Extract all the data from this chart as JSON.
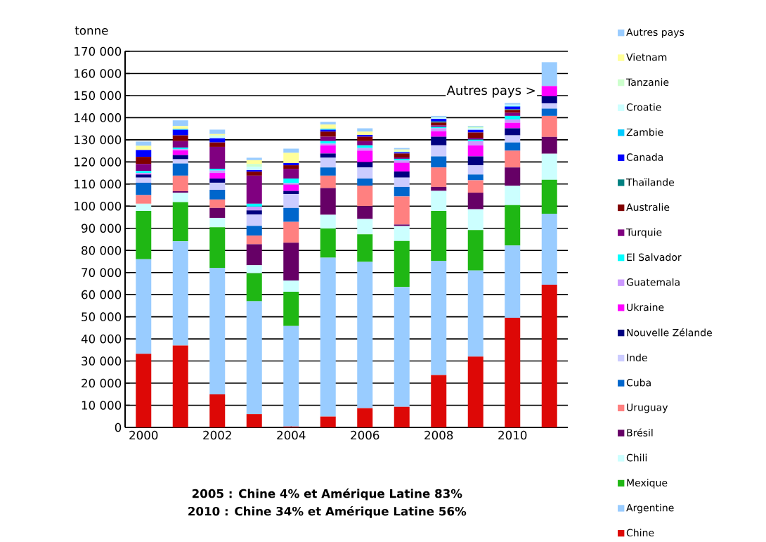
{
  "chart_data": {
    "type": "bar",
    "stacked": true,
    "ylabel": "tonne",
    "grid": "y",
    "legend": "right",
    "categories": [
      "2000",
      null,
      "2002",
      null,
      "2004",
      null,
      "2006",
      null,
      "2008",
      null,
      "2010",
      null
    ],
    "ylim": [
      0,
      170000
    ],
    "yticks": [
      0,
      {
        "value": 10000,
        "label": "10 000"
      },
      {
        "value": 20000,
        "label": "20 000"
      },
      {
        "value": 30000,
        "label": "30 000"
      },
      {
        "value": 40000,
        "label": "40 000"
      },
      {
        "value": 50000,
        "label": "50 000"
      },
      {
        "value": 60000,
        "label": "60 000"
      },
      {
        "value": 70000,
        "label": "70 000"
      },
      {
        "value": 80000,
        "label": "80 000"
      },
      {
        "value": 90000,
        "label": "90 000"
      },
      {
        "value": 100000,
        "label": "100 000"
      },
      {
        "value": 110000,
        "label": "110 000"
      },
      {
        "value": 120000,
        "label": "120 000"
      },
      {
        "value": 130000,
        "label": "130 000"
      },
      {
        "value": 140000,
        "label": "140 000"
      },
      {
        "value": 150000,
        "label": "150 000"
      },
      {
        "value": 160000,
        "label": "160 000"
      },
      {
        "value": 170000,
        "label": "170 000"
      }
    ],
    "series": [
      {
        "name": "Chine",
        "color": "#dd0806",
        "values": [
          33300,
          37000,
          14900,
          6000,
          400,
          4900,
          8700,
          9300,
          23700,
          32000,
          49600,
          64500
        ]
      },
      {
        "name": "Argentine",
        "color": "#99ccff",
        "values": [
          42700,
          47100,
          57200,
          51000,
          45400,
          71800,
          66100,
          54200,
          51600,
          38900,
          32600,
          32100
        ]
      },
      {
        "name": "Mexique",
        "color": "#1fb714",
        "values": [
          21900,
          17700,
          18400,
          12700,
          15500,
          13200,
          12500,
          20800,
          22600,
          18300,
          18300,
          15300
        ]
      },
      {
        "name": "Chili",
        "color": "#ccffff",
        "values": [
          3200,
          4300,
          4200,
          3600,
          5100,
          6200,
          6900,
          6700,
          9000,
          9400,
          8700,
          11800
        ]
      },
      {
        "name": "Brésil",
        "color": "#660066",
        "values": [
          0,
          700,
          4500,
          9500,
          17100,
          12100,
          5800,
          700,
          1800,
          7500,
          8300,
          7600
        ]
      },
      {
        "name": "Uruguay",
        "color": "#ff8080",
        "values": [
          3900,
          7000,
          3800,
          3900,
          9400,
          5600,
          9300,
          12700,
          8800,
          5600,
          7600,
          9500
        ]
      },
      {
        "name": "Cuba",
        "color": "#0066cc",
        "values": [
          5600,
          5500,
          4400,
          4400,
          6300,
          3700,
          3200,
          4300,
          5000,
          2600,
          3700,
          3300
        ]
      },
      {
        "name": "Inde",
        "color": "#ccccff",
        "values": [
          2300,
          1900,
          3200,
          5100,
          6300,
          4400,
          5000,
          4200,
          5000,
          4200,
          3200,
          2400
        ]
      },
      {
        "name": "Nouvelle Zélande",
        "color": "#000080",
        "values": [
          1400,
          1900,
          1900,
          1900,
          1400,
          1900,
          2400,
          2800,
          3900,
          4000,
          3200,
          3200
        ]
      },
      {
        "name": "Ukraine",
        "color": "#ff00ff",
        "values": [
          300,
          2100,
          2500,
          0,
          2800,
          3700,
          5200,
          3900,
          2500,
          5000,
          2500,
          4600
        ]
      },
      {
        "name": "Guatemala",
        "color": "#cc99ff",
        "values": [
          300,
          600,
          1100,
          1700,
          700,
          800,
          1200,
          1100,
          1300,
          1900,
          1500,
          0
        ]
      },
      {
        "name": "El Salvador",
        "color": "#00ffff",
        "values": [
          1000,
          700,
          800,
          1300,
          2100,
          1100,
          1200,
          700,
          600,
          700,
          1600,
          0
        ]
      },
      {
        "name": "Turquie",
        "color": "#800080",
        "values": [
          3200,
          2900,
          9900,
          12700,
          4400,
          2000,
          1900,
          600,
          700,
          800,
          1400,
          0
        ]
      },
      {
        "name": "Australie",
        "color": "#800000",
        "values": [
          3200,
          2600,
          2000,
          1800,
          1600,
          2300,
          2000,
          1800,
          1300,
          2400,
          1300,
          0
        ]
      },
      {
        "name": "Thaïlande",
        "color": "#008080",
        "values": [
          0,
          0,
          0,
          0,
          0,
          0,
          0,
          0,
          500,
          0,
          300,
          0
        ]
      },
      {
        "name": "Canada",
        "color": "#0000ff",
        "values": [
          3100,
          2500,
          1900,
          700,
          1000,
          800,
          800,
          600,
          1200,
          1200,
          1200,
          0
        ]
      },
      {
        "name": "Zambie",
        "color": "#00ccff",
        "values": [
          0,
          400,
          0,
          0,
          0,
          500,
          0,
          0,
          0,
          0,
          300,
          0
        ]
      },
      {
        "name": "Croatie",
        "color": "#ccffff",
        "values": [
          0,
          0,
          700,
          1500,
          null,
          0,
          0,
          0,
          800,
          800,
          600,
          0
        ]
      },
      {
        "name": "Tanzanie",
        "color": "#ccffcc",
        "values": [
          0,
          0,
          600,
          1300,
          0,
          0,
          0,
          700,
          null,
          700,
          null,
          0
        ]
      },
      {
        "name": "Vietnam",
        "color": "#ffff99",
        "values": [
          1900,
          1300,
          600,
          1700,
          4600,
          1900,
          1500,
          500,
          0,
          0,
          0,
          0
        ]
      },
      {
        "name": "Autres pays",
        "color": "#99ccff",
        "values": [
          1900,
          2600,
          2000,
          1100,
          1900,
          1200,
          1500,
          700,
          500,
          300,
          700,
          10800
        ]
      }
    ],
    "annotations": [
      "Autres pays >",
      "2005 : Chine 4% et Amérique Latine 83%",
      "2010 : Chine 34% et Amérique Latine 56%"
    ]
  }
}
